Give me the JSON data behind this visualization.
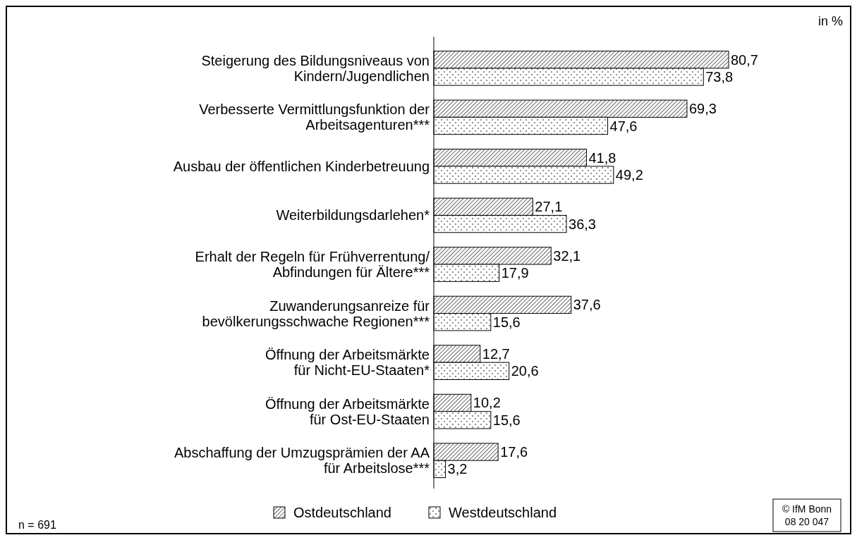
{
  "chart_data": {
    "type": "bar",
    "orientation": "horizontal",
    "categories": [
      "Steigerung des Bildungsniveaus von\nKindern/Jugendlichen",
      "Verbesserte Vermittlungsfunktion der\nArbeitsagenturen***",
      "Ausbau der öffentlichen Kinderbetreuung",
      "Weiterbildungsdarlehen*",
      "Erhalt der Regeln für Frühverrentung/\nAbfindungen für Ältere***",
      "Zuwanderungsanreize für\nbevölkerungsschwache Regionen***",
      "Öffnung der Arbeitsmärkte\nfür Nicht-EU-Staaten*",
      "Öffnung der Arbeitsmärkte\nfür Ost-EU-Staaten",
      "Abschaffung der Umzugsprämien der AA\nfür Arbeitslose***"
    ],
    "series": [
      {
        "name": "Ostdeutschland",
        "color": "#000000",
        "values": [
          80.7,
          69.3,
          41.8,
          27.1,
          32.1,
          37.6,
          12.7,
          10.2,
          17.6
        ],
        "value_labels": [
          "80,7",
          "69,3",
          "41,8",
          "27,1",
          "32,1",
          "37,6",
          "12,7",
          "10,2",
          "17,6"
        ]
      },
      {
        "name": "Westdeutschland",
        "color": "#000000",
        "values": [
          73.8,
          47.6,
          49.2,
          36.3,
          17.9,
          15.6,
          20.6,
          15.6,
          3.2
        ],
        "value_labels": [
          "73,8",
          "47,6",
          "49,2",
          "36,3",
          "17,9",
          "15,6",
          "20,6",
          "15,6",
          "3,2"
        ]
      }
    ],
    "legend": "bottom",
    "tick_labels": "y",
    "annotations": [
      "in %",
      "n = 691",
      "© IfM Bonn\n08 20 047"
    ]
  }
}
